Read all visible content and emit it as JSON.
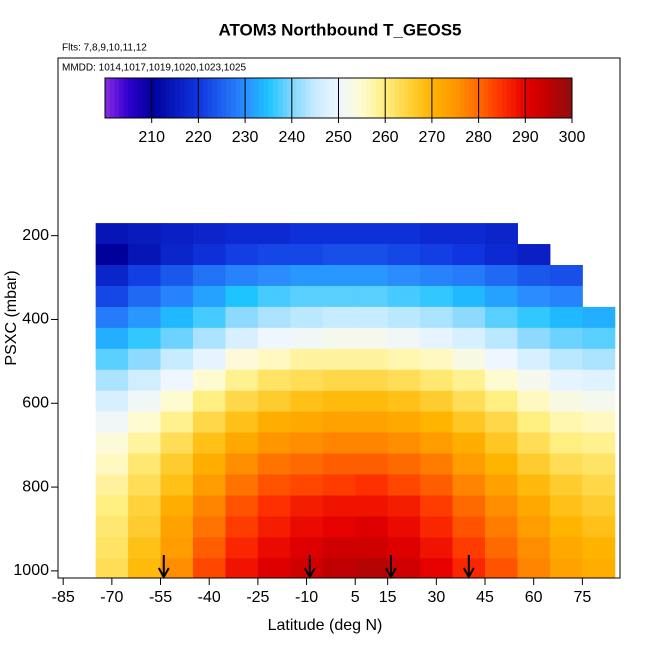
{
  "chart_data": {
    "type": "heatmap",
    "title": "ATOM3 Northbound T_GEOS5",
    "subtitle": "Flts: 7,8,9,10,11,12",
    "annotation": "MMDD: 1014,1017,1019,1020,1023,1025",
    "xlabel": "Latitude (deg N)",
    "ylabel": "PSXC (mbar)",
    "xlim": [
      -86.6,
      86.6
    ],
    "ylim": [
      1017,
      -224
    ],
    "xticks": [
      -85,
      -70,
      -55,
      -40,
      -25,
      -10,
      5,
      15,
      30,
      45,
      60,
      75
    ],
    "yticks": [
      200,
      400,
      600,
      800,
      1000
    ],
    "x_edges": [
      -75,
      -65,
      -55,
      -45,
      -35,
      -25,
      -15,
      -5,
      5,
      15,
      25,
      35,
      45,
      55,
      65,
      75,
      85
    ],
    "y_edges": [
      170,
      220,
      270,
      320,
      370,
      420,
      470,
      520,
      570,
      620,
      670,
      720,
      770,
      820,
      870,
      920,
      970,
      1020
    ],
    "z": [
      [
        214,
        215,
        216,
        217,
        218,
        218,
        219,
        219,
        219,
        219,
        218,
        218,
        217,
        null,
        null,
        null
      ],
      [
        210,
        214,
        217,
        219,
        221,
        222,
        222,
        223,
        223,
        222,
        221,
        220,
        218,
        216,
        null,
        null
      ],
      [
        217,
        221,
        224,
        227,
        229,
        230,
        231,
        231,
        231,
        230,
        229,
        228,
        226,
        224,
        223,
        null
      ],
      [
        222,
        226,
        229,
        232,
        235,
        237,
        238,
        238,
        238,
        237,
        236,
        234,
        232,
        230,
        229,
        null
      ],
      [
        228,
        231,
        234,
        237,
        241,
        243,
        244,
        245,
        245,
        244,
        243,
        241,
        238,
        236,
        234,
        233
      ],
      [
        233,
        236,
        239,
        243,
        247,
        250,
        251,
        252,
        252,
        251,
        249,
        247,
        244,
        241,
        239,
        238
      ],
      [
        238,
        241,
        245,
        249,
        254,
        256,
        258,
        258,
        258,
        257,
        256,
        253,
        250,
        247,
        244,
        243
      ],
      [
        243,
        246,
        250,
        255,
        259,
        262,
        263,
        264,
        264,
        263,
        261,
        259,
        255,
        252,
        249,
        248
      ],
      [
        247,
        251,
        255,
        260,
        264,
        266,
        268,
        269,
        269,
        268,
        266,
        263,
        260,
        256,
        253,
        252
      ],
      [
        251,
        255,
        259,
        264,
        268,
        271,
        272,
        273,
        273,
        272,
        270,
        267,
        264,
        260,
        257,
        256
      ],
      [
        254,
        258,
        263,
        268,
        272,
        275,
        276,
        277,
        277,
        276,
        274,
        271,
        267,
        263,
        260,
        259
      ],
      [
        256,
        261,
        266,
        271,
        276,
        279,
        280,
        281,
        281,
        280,
        278,
        274,
        270,
        266,
        263,
        262
      ],
      [
        258,
        263,
        268,
        274,
        279,
        282,
        283,
        284,
        285,
        283,
        281,
        277,
        273,
        269,
        266,
        264
      ],
      [
        260,
        265,
        271,
        277,
        282,
        285,
        287,
        288,
        288,
        287,
        284,
        280,
        276,
        272,
        268,
        266
      ],
      [
        261,
        266,
        273,
        279,
        284,
        287,
        289,
        290,
        291,
        289,
        286,
        282,
        278,
        274,
        270,
        268
      ],
      [
        262,
        268,
        274,
        281,
        286,
        289,
        291,
        293,
        293,
        291,
        288,
        284,
        280,
        276,
        272,
        270
      ],
      [
        263,
        269,
        276,
        283,
        288,
        291,
        293,
        295,
        296,
        293,
        290,
        286,
        282,
        277,
        273,
        271
      ]
    ],
    "colorscale": [
      [
        200,
        "#8a2be2"
      ],
      [
        205,
        "#3000d0"
      ],
      [
        210,
        "#00009a"
      ],
      [
        220,
        "#1035e0"
      ],
      [
        230,
        "#2a8cff"
      ],
      [
        235,
        "#1ec4ff"
      ],
      [
        240,
        "#80d6ff"
      ],
      [
        245,
        "#c8ecff"
      ],
      [
        250,
        "#eef6ff"
      ],
      [
        255,
        "#fffbd0"
      ],
      [
        260,
        "#ffee80"
      ],
      [
        265,
        "#ffd23c"
      ],
      [
        270,
        "#ffb400"
      ],
      [
        275,
        "#ff9600"
      ],
      [
        280,
        "#ff6a00"
      ],
      [
        285,
        "#ff3000"
      ],
      [
        290,
        "#e60000"
      ],
      [
        295,
        "#c00000"
      ],
      [
        300,
        "#8c1010"
      ]
    ],
    "colorbar_lim": [
      200,
      300
    ],
    "colorbar_ticks": [
      210,
      220,
      230,
      240,
      250,
      260,
      270,
      280,
      290,
      300
    ],
    "arrows_lat": [
      -54,
      -9,
      16,
      40
    ]
  }
}
